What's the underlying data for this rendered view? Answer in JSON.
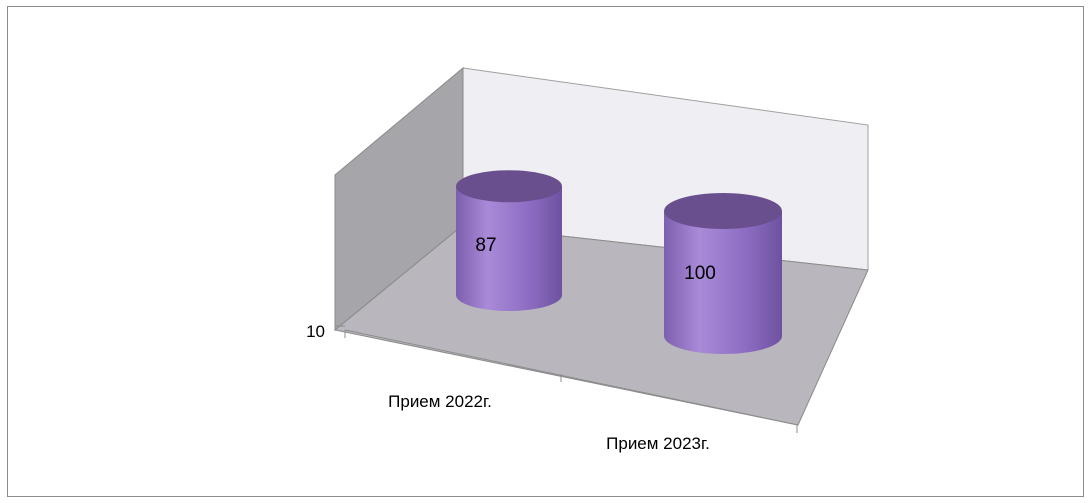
{
  "chart_data": {
    "type": "bar",
    "style": "3d-cylinder",
    "categories": [
      "Прием 2022г.",
      "Прием 2023г."
    ],
    "values": [
      87,
      100
    ],
    "data_labels": [
      "87",
      "100"
    ],
    "y_tick_labels": [
      "10"
    ],
    "title": "",
    "xlabel": "",
    "ylabel": "",
    "legend": "none",
    "grid": false,
    "colors": {
      "cylinder_body": "#8b6bbf",
      "cylinder_top": "#6a4f8f",
      "cylinder_edge": "#5a4a7a",
      "back_wall": "#efeff3",
      "side_wall": "#a6a6aa",
      "floor": "#b9b7bd",
      "border": "#8c8c8c"
    }
  }
}
